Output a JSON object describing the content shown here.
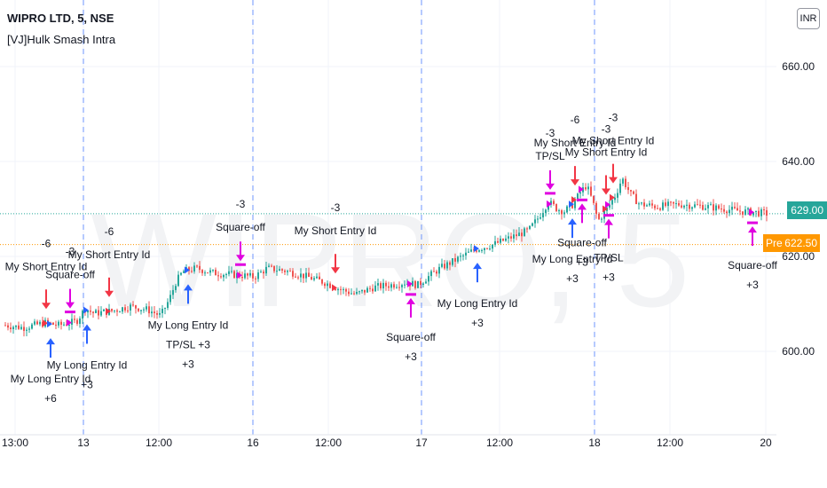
{
  "legend": {
    "symbol": "WIPRO LTD, 5, NSE",
    "indicator": "[VJ]Hulk Smash Intra"
  },
  "currency": "INR",
  "watermark": "WIPRO, 5",
  "last_price_label": "629.00",
  "premarket": {
    "label": "Pre",
    "value": "622.50"
  },
  "colors": {
    "up": "#26a69a",
    "down": "#ef5350",
    "long": "#2962ff",
    "short": "#f23645",
    "exit": "#e000e0",
    "last_line": "#26a69a",
    "pre_line": "#ff9800",
    "session": "#2962ff"
  },
  "chart_data": {
    "type": "candlestick",
    "title": "WIPRO LTD, 5, NSE",
    "ylim": [
      587,
      668
    ],
    "yticks": [
      600,
      620,
      640,
      660
    ],
    "ytick_labels": [
      "600.00",
      "620.00",
      "640.00",
      "660.00"
    ],
    "last_price": 629.0,
    "premarket_price": 622.5,
    "x_range": [
      0,
      860
    ],
    "time_ticks": [
      {
        "t": 12,
        "label": "13:00"
      },
      {
        "t": 89,
        "label": "13"
      },
      {
        "t": 174,
        "label": "12:00"
      },
      {
        "t": 280,
        "label": "16"
      },
      {
        "t": 365,
        "label": "12:00"
      },
      {
        "t": 470,
        "label": "17"
      },
      {
        "t": 558,
        "label": "12:00"
      },
      {
        "t": 665,
        "label": "18"
      },
      {
        "t": 750,
        "label": "12:00"
      },
      {
        "t": 858,
        "label": "20"
      }
    ],
    "session_breaks": [
      89,
      280,
      470,
      665
    ],
    "price_path": [
      [
        0,
        605.5
      ],
      [
        20,
        605.0
      ],
      [
        45,
        606.0
      ],
      [
        60,
        605.5
      ],
      [
        80,
        606.3
      ],
      [
        90,
        609.0
      ],
      [
        100,
        608.0
      ],
      [
        120,
        608.5
      ],
      [
        140,
        609.5
      ],
      [
        160,
        608.8
      ],
      [
        175,
        607.5
      ],
      [
        185,
        611.0
      ],
      [
        192,
        614.5
      ],
      [
        200,
        616.8
      ],
      [
        215,
        617.5
      ],
      [
        235,
        616.5
      ],
      [
        255,
        616.2
      ],
      [
        268,
        616.0
      ],
      [
        280,
        615.6
      ],
      [
        295,
        617.5
      ],
      [
        315,
        617.0
      ],
      [
        335,
        616.0
      ],
      [
        360,
        614.5
      ],
      [
        378,
        613.0
      ],
      [
        395,
        612.0
      ],
      [
        415,
        613.5
      ],
      [
        435,
        614.0
      ],
      [
        450,
        614.5
      ],
      [
        465,
        614.0
      ],
      [
        475,
        615.5
      ],
      [
        490,
        617.5
      ],
      [
        510,
        619.5
      ],
      [
        530,
        621.5
      ],
      [
        550,
        622.5
      ],
      [
        570,
        624.0
      ],
      [
        590,
        625.5
      ],
      [
        600,
        628.0
      ],
      [
        612,
        631.5
      ],
      [
        622,
        630.0
      ],
      [
        630,
        629.5
      ],
      [
        640,
        631.0
      ],
      [
        648,
        633.5
      ],
      [
        655,
        635.0
      ],
      [
        662,
        631.5
      ],
      [
        668,
        627.5
      ],
      [
        678,
        630.0
      ],
      [
        688,
        633.0
      ],
      [
        695,
        636.5
      ],
      [
        705,
        633.0
      ],
      [
        715,
        631.0
      ],
      [
        735,
        630.5
      ],
      [
        760,
        631.0
      ],
      [
        790,
        630.5
      ],
      [
        810,
        630.0
      ],
      [
        830,
        629.5
      ],
      [
        845,
        629.3
      ],
      [
        858,
        629.0
      ]
    ],
    "signals": [
      {
        "t": 47,
        "kind": "short",
        "labels": [
          "-6",
          "My Short Entry Id"
        ]
      },
      {
        "t": 52,
        "kind": "long",
        "labels": [
          "My Long Entry Id",
          "+6"
        ]
      },
      {
        "t": 74,
        "kind": "exit",
        "dir": "down",
        "labels": [
          "-3",
          "Square-off"
        ]
      },
      {
        "t": 93,
        "kind": "long",
        "labels": [
          "My Long Entry Id",
          "+3"
        ]
      },
      {
        "t": 118,
        "kind": "short",
        "labels": [
          "-6",
          "My Short Entry Id"
        ]
      },
      {
        "t": 207,
        "kind": "long",
        "labels": [
          "My Long Entry Id",
          "TP/SL +3",
          "+3"
        ]
      },
      {
        "t": 266,
        "kind": "exit",
        "dir": "down",
        "labels": [
          "-3",
          "Square-off"
        ]
      },
      {
        "t": 373,
        "kind": "short",
        "labels": [
          "-3",
          "My Short Entry Id"
        ]
      },
      {
        "t": 458,
        "kind": "exit",
        "dir": "up",
        "labels": [
          "Square-off",
          "+3"
        ]
      },
      {
        "t": 533,
        "kind": "long",
        "labels": [
          "My Long Entry Id",
          "+3"
        ]
      },
      {
        "t": 615,
        "kind": "exit",
        "dir": "down",
        "labels": [
          "-3",
          "TP/SL"
        ]
      },
      {
        "t": 640,
        "kind": "long",
        "labels": [
          "My Long Entry Id",
          "+3"
        ]
      },
      {
        "t": 643,
        "kind": "short",
        "labels": [
          "-6",
          "My Short Entry Id"
        ]
      },
      {
        "t": 651,
        "kind": "exit",
        "dir": "up",
        "labels": [
          "Square-off",
          "+3"
        ]
      },
      {
        "t": 678,
        "kind": "short",
        "labels": [
          "-3",
          "My Short Entry Id"
        ]
      },
      {
        "t": 681,
        "kind": "exit",
        "dir": "up",
        "labels": [
          "TP/SL",
          "+3"
        ]
      },
      {
        "t": 686,
        "kind": "short",
        "labels": [
          "-3",
          "My Short Entry Id"
        ]
      },
      {
        "t": 843,
        "kind": "exit",
        "dir": "up",
        "labels": [
          "Square-off",
          "+3"
        ]
      }
    ]
  }
}
